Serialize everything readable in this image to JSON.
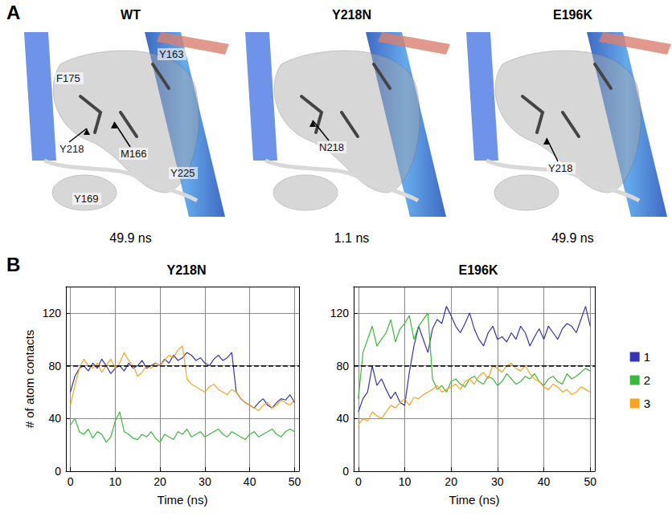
{
  "figure": {
    "panel_letters": [
      "A",
      "B"
    ],
    "structures": [
      {
        "title": "WT",
        "labels": [
          "Y163",
          "F175",
          "Y218",
          "M166",
          "Y225",
          "Y169"
        ],
        "time": "49.9 ns"
      },
      {
        "title": "Y218N",
        "labels": [
          "N218"
        ],
        "time": "1.1 ns"
      },
      {
        "title": "E196K",
        "labels": [
          "Y218"
        ],
        "time": "49.9 ns"
      }
    ]
  },
  "chart_data": [
    {
      "type": "line",
      "title": "Y218N",
      "xlabel": "Time (ns)",
      "ylabel": "# of atom contacts",
      "x": [
        0,
        1,
        2,
        3,
        4,
        5,
        6,
        7,
        8,
        9,
        10,
        11,
        12,
        13,
        14,
        15,
        16,
        17,
        18,
        19,
        20,
        21,
        22,
        23,
        24,
        25,
        26,
        27,
        28,
        29,
        30,
        31,
        32,
        33,
        34,
        35,
        36,
        37,
        38,
        39,
        40,
        41,
        42,
        43,
        44,
        45,
        46,
        47,
        48,
        49,
        50
      ],
      "xlim": [
        -1,
        51
      ],
      "xticks": [
        0,
        10,
        20,
        30,
        40,
        50
      ],
      "ylim": [
        0,
        140
      ],
      "yticks": [
        0,
        40,
        80,
        120
      ],
      "grid": true,
      "legend": "right",
      "reference_line": 80,
      "series": [
        {
          "name": "1",
          "color": "#3535b0",
          "values": [
            60,
            72,
            78,
            80,
            76,
            82,
            78,
            85,
            80,
            74,
            78,
            80,
            76,
            82,
            78,
            80,
            84,
            78,
            80,
            82,
            80,
            85,
            82,
            88,
            84,
            86,
            90,
            88,
            84,
            86,
            82,
            80,
            85,
            88,
            84,
            86,
            90,
            60,
            55,
            52,
            50,
            48,
            52,
            55,
            50,
            48,
            52,
            55,
            54,
            58,
            52
          ]
        },
        {
          "name": "2",
          "color": "#3cb83c",
          "values": [
            35,
            40,
            30,
            28,
            32,
            25,
            30,
            28,
            22,
            26,
            38,
            45,
            30,
            28,
            25,
            24,
            28,
            26,
            30,
            25,
            22,
            28,
            26,
            24,
            30,
            28,
            32,
            26,
            28,
            30,
            26,
            28,
            30,
            32,
            28,
            26,
            30,
            28,
            26,
            24,
            28,
            30,
            26,
            28,
            30,
            32,
            28,
            26,
            30,
            32,
            30
          ]
        },
        {
          "name": "3",
          "color": "#f5a623",
          "values": [
            50,
            65,
            78,
            85,
            80,
            78,
            82,
            75,
            80,
            85,
            78,
            82,
            90,
            84,
            80,
            72,
            75,
            80,
            78,
            82,
            80,
            84,
            88,
            86,
            92,
            95,
            70,
            66,
            64,
            62,
            60,
            64,
            66,
            62,
            60,
            58,
            62,
            60,
            55,
            52,
            50,
            48,
            46,
            50,
            52,
            48,
            50,
            54,
            52,
            50,
            55
          ]
        }
      ]
    },
    {
      "type": "line",
      "title": "E196K",
      "xlabel": "Time (ns)",
      "x": [
        0,
        1,
        2,
        3,
        4,
        5,
        6,
        7,
        8,
        9,
        10,
        11,
        12,
        13,
        14,
        15,
        16,
        17,
        18,
        19,
        20,
        21,
        22,
        23,
        24,
        25,
        26,
        27,
        28,
        29,
        30,
        31,
        32,
        33,
        34,
        35,
        36,
        37,
        38,
        39,
        40,
        41,
        42,
        43,
        44,
        45,
        46,
        47,
        48,
        49,
        50
      ],
      "xlim": [
        -1,
        51
      ],
      "xticks": [
        0,
        10,
        20,
        30,
        40,
        50
      ],
      "ylim": [
        0,
        140
      ],
      "yticks": [
        0,
        40,
        80,
        120
      ],
      "grid": true,
      "legend": "right",
      "reference_line": 80,
      "series": [
        {
          "name": "1",
          "color": "#3535b0",
          "values": [
            45,
            55,
            60,
            80,
            65,
            70,
            62,
            55,
            60,
            52,
            50,
            75,
            95,
            110,
            100,
            90,
            108,
            115,
            112,
            125,
            118,
            110,
            105,
            112,
            120,
            108,
            100,
            95,
            105,
            110,
            100,
            102,
            98,
            105,
            100,
            110,
            105,
            95,
            102,
            108,
            100,
            110,
            105,
            100,
            108,
            112,
            110,
            105,
            115,
            125,
            110
          ]
        },
        {
          "name": "2",
          "color": "#3cb83c",
          "values": [
            55,
            90,
            100,
            110,
            95,
            100,
            105,
            115,
            98,
            108,
            112,
            118,
            100,
            110,
            115,
            120,
            70,
            62,
            65,
            60,
            68,
            70,
            66,
            64,
            70,
            72,
            68,
            66,
            72,
            70,
            65,
            68,
            74,
            70,
            66,
            68,
            72,
            70,
            74,
            68,
            65,
            70,
            72,
            68,
            66,
            74,
            70,
            72,
            75,
            78,
            76
          ]
        },
        {
          "name": "3",
          "color": "#f5a623",
          "values": [
            35,
            40,
            38,
            45,
            42,
            40,
            45,
            50,
            48,
            52,
            55,
            50,
            56,
            55,
            58,
            60,
            62,
            65,
            60,
            62,
            64,
            66,
            62,
            68,
            70,
            66,
            72,
            75,
            70,
            80,
            78,
            75,
            80,
            82,
            78,
            76,
            80,
            74,
            70,
            68,
            64,
            62,
            66,
            64,
            60,
            62,
            58,
            60,
            64,
            62,
            60
          ]
        }
      ]
    }
  ]
}
